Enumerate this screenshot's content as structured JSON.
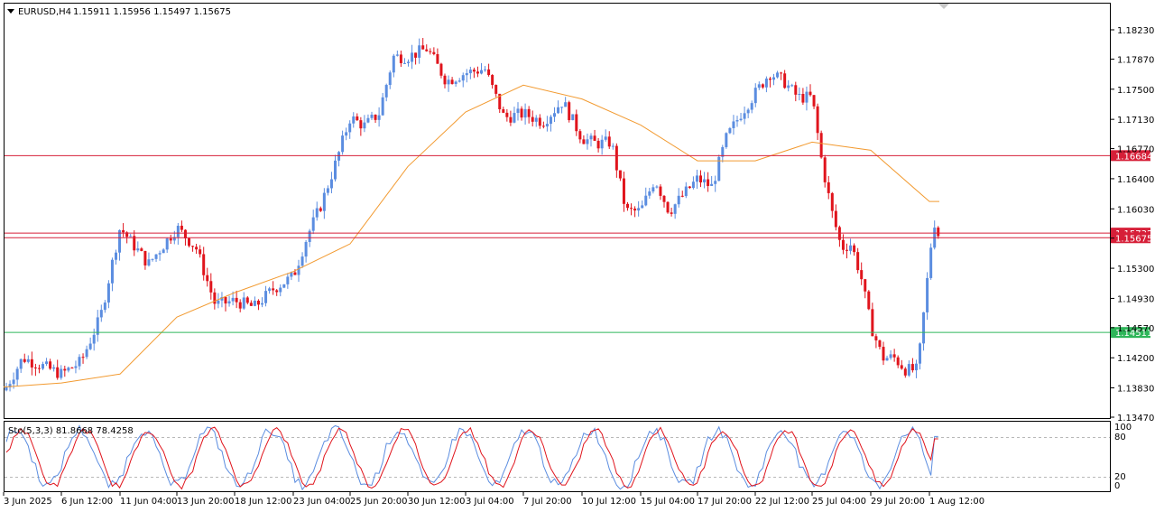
{
  "header": {
    "symbol_label": "EURUSD,H4",
    "ohlc_values": "1.15911 1.15956 1.15497 1.15675"
  },
  "indicator": {
    "label": "Sto(5,3,3) 81.8668 78.4258",
    "levels": [
      "100",
      "80",
      "20",
      "0"
    ]
  },
  "colors": {
    "bull_candle": "#5b8de0",
    "bear_candle": "#e0141c",
    "moving_average": "#f29a30",
    "sto_main": "#5b8de0",
    "sto_signal": "#e0141c",
    "hline_red": "#d61f38",
    "hline_green": "#2fb65a"
  },
  "chart_data": {
    "type": "candlestick",
    "symbol": "EURUSD",
    "timeframe": "H4",
    "ylim": [
      1.1347,
      1.1842
    ],
    "price_ticks": [
      "1.18230",
      "1.17870",
      "1.17500",
      "1.17130",
      "1.16770",
      "1.16400",
      "1.16030",
      "1.15670",
      "1.15300",
      "1.14930",
      "1.14570",
      "1.14200",
      "1.13830",
      "1.13470"
    ],
    "time_ticks": [
      "3 Jun 2025",
      "6 Jun 12:00",
      "11 Jun 04:00",
      "13 Jun 20:00",
      "18 Jun 12:00",
      "23 Jun 04:00",
      "25 Jun 20:00",
      "30 Jun 12:00",
      "3 Jul 04:00",
      "7 Jul 20:00",
      "10 Jul 12:00",
      "15 Jul 04:00",
      "17 Jul 20:00",
      "22 Jul 12:00",
      "25 Jul 04:00",
      "29 Jul 20:00",
      "1 Aug 12:00"
    ],
    "horizontal_lines": [
      {
        "price": 1.16684,
        "label": "1.16684",
        "color": "red"
      },
      {
        "price": 1.15732,
        "label": "1.15732",
        "color": "red"
      },
      {
        "price": 1.15675,
        "label": "1.15675",
        "color": "red"
      },
      {
        "price": 1.14511,
        "label": "1.14511",
        "color": "green"
      }
    ],
    "last_bar": {
      "open": 1.15911,
      "high": 1.15956,
      "low": 1.15497,
      "close": 1.15675
    },
    "ma_line": [
      {
        "t": "3 Jun 2025",
        "v": 1.1384
      },
      {
        "t": "6 Jun 12:00",
        "v": 1.1389
      },
      {
        "t": "11 Jun 04:00",
        "v": 1.14
      },
      {
        "t": "13 Jun 20:00",
        "v": 1.147
      },
      {
        "t": "18 Jun 12:00",
        "v": 1.15
      },
      {
        "t": "23 Jun 04:00",
        "v": 1.1526
      },
      {
        "t": "25 Jun 20:00",
        "v": 1.156
      },
      {
        "t": "30 Jun 12:00",
        "v": 1.1655
      },
      {
        "t": "3 Jul 04:00",
        "v": 1.1722
      },
      {
        "t": "7 Jul 20:00",
        "v": 1.1755
      },
      {
        "t": "10 Jul 12:00",
        "v": 1.1738
      },
      {
        "t": "15 Jul 04:00",
        "v": 1.1706
      },
      {
        "t": "17 Jul 20:00",
        "v": 1.1662
      },
      {
        "t": "22 Jul 12:00",
        "v": 1.1662
      },
      {
        "t": "25 Jul 04:00",
        "v": 1.1685
      },
      {
        "t": "29 Jul 20:00",
        "v": 1.1675
      },
      {
        "t": "1 Aug 12:00",
        "v": 1.1612
      }
    ],
    "anchors": [
      {
        "t": "3 Jun 2025",
        "p": 1.1378
      },
      {
        "t": "4 Jun",
        "p": 1.142
      },
      {
        "t": "5 Jun",
        "p": 1.141
      },
      {
        "t": "6 Jun 12:00",
        "p": 1.14
      },
      {
        "t": "9 Jun",
        "p": 1.1415
      },
      {
        "t": "10 Jun",
        "p": 1.147
      },
      {
        "t": "11 Jun 04:00",
        "p": 1.158
      },
      {
        "t": "12 Jun",
        "p": 1.1535
      },
      {
        "t": "13 Jun 20:00",
        "p": 1.158
      },
      {
        "t": "16 Jun",
        "p": 1.1555
      },
      {
        "t": "17 Jun",
        "p": 1.1485
      },
      {
        "t": "18 Jun 12:00",
        "p": 1.149
      },
      {
        "t": "19 Jun",
        "p": 1.1482
      },
      {
        "t": "20 Jun",
        "p": 1.1505
      },
      {
        "t": "23 Jun 04:00",
        "p": 1.152
      },
      {
        "t": "24 Jun",
        "p": 1.157
      },
      {
        "t": "24 Jun 12:00",
        "p": 1.161
      },
      {
        "t": "25 Jun",
        "p": 1.166
      },
      {
        "t": "25 Jun 20:00",
        "p": 1.1715
      },
      {
        "t": "26 Jun",
        "p": 1.1705
      },
      {
        "t": "27 Jun",
        "p": 1.172
      },
      {
        "t": "29 Jun",
        "p": 1.179
      },
      {
        "t": "30 Jun 12:00",
        "p": 1.179
      },
      {
        "t": "1 Jul",
        "p": 1.18
      },
      {
        "t": "2 Jul",
        "p": 1.176
      },
      {
        "t": "3 Jul 04:00",
        "p": 1.177
      },
      {
        "t": "4 Jul",
        "p": 1.1775
      },
      {
        "t": "6 Jul",
        "p": 1.1715
      },
      {
        "t": "7 Jul 20:00",
        "p": 1.172
      },
      {
        "t": "8 Jul",
        "p": 1.171
      },
      {
        "t": "9 Jul",
        "p": 1.1735
      },
      {
        "t": "10 Jul 12:00",
        "p": 1.169
      },
      {
        "t": "11 Jul",
        "p": 1.1683
      },
      {
        "t": "14 Jul",
        "p": 1.1685
      },
      {
        "t": "14 Jul 12:00",
        "p": 1.16
      },
      {
        "t": "15 Jul 04:00",
        "p": 1.16
      },
      {
        "t": "16 Jul",
        "p": 1.164
      },
      {
        "t": "16 Jul 12:00",
        "p": 1.16
      },
      {
        "t": "17 Jul",
        "p": 1.162
      },
      {
        "t": "17 Jul 20:00",
        "p": 1.164
      },
      {
        "t": "18 Jul",
        "p": 1.163
      },
      {
        "t": "21 Jul",
        "p": 1.169
      },
      {
        "t": "22 Jul",
        "p": 1.172
      },
      {
        "t": "22 Jul 12:00",
        "p": 1.1745
      },
      {
        "t": "23 Jul",
        "p": 1.177
      },
      {
        "t": "24 Jul",
        "p": 1.176
      },
      {
        "t": "24 Jul 12:00",
        "p": 1.174
      },
      {
        "t": "25 Jul 04:00",
        "p": 1.174
      },
      {
        "t": "25 Jul 12:00",
        "p": 1.166
      },
      {
        "t": "28 Jul",
        "p": 1.16
      },
      {
        "t": "28 Jul 12:00",
        "p": 1.1555
      },
      {
        "t": "29 Jul",
        "p": 1.156
      },
      {
        "t": "29 Jul 12:00",
        "p": 1.152
      },
      {
        "t": "29 Jul 20:00",
        "p": 1.146
      },
      {
        "t": "30 Jul",
        "p": 1.142
      },
      {
        "t": "30 Jul 12:00",
        "p": 1.142
      },
      {
        "t": "31 Jul",
        "p": 1.1405
      },
      {
        "t": "1 Aug",
        "p": 1.1405
      },
      {
        "t": "1 Aug 12:00",
        "p": 1.154
      },
      {
        "t": "1 Aug 16:00",
        "p": 1.159
      },
      {
        "t": "1 Aug 20:00",
        "p": 1.15675
      }
    ],
    "stochastic": {
      "k_period": 5,
      "d_period": 3,
      "slowing": 3,
      "main": 81.8668,
      "signal": 78.4258,
      "levels": [
        0,
        20,
        80,
        100
      ]
    }
  }
}
